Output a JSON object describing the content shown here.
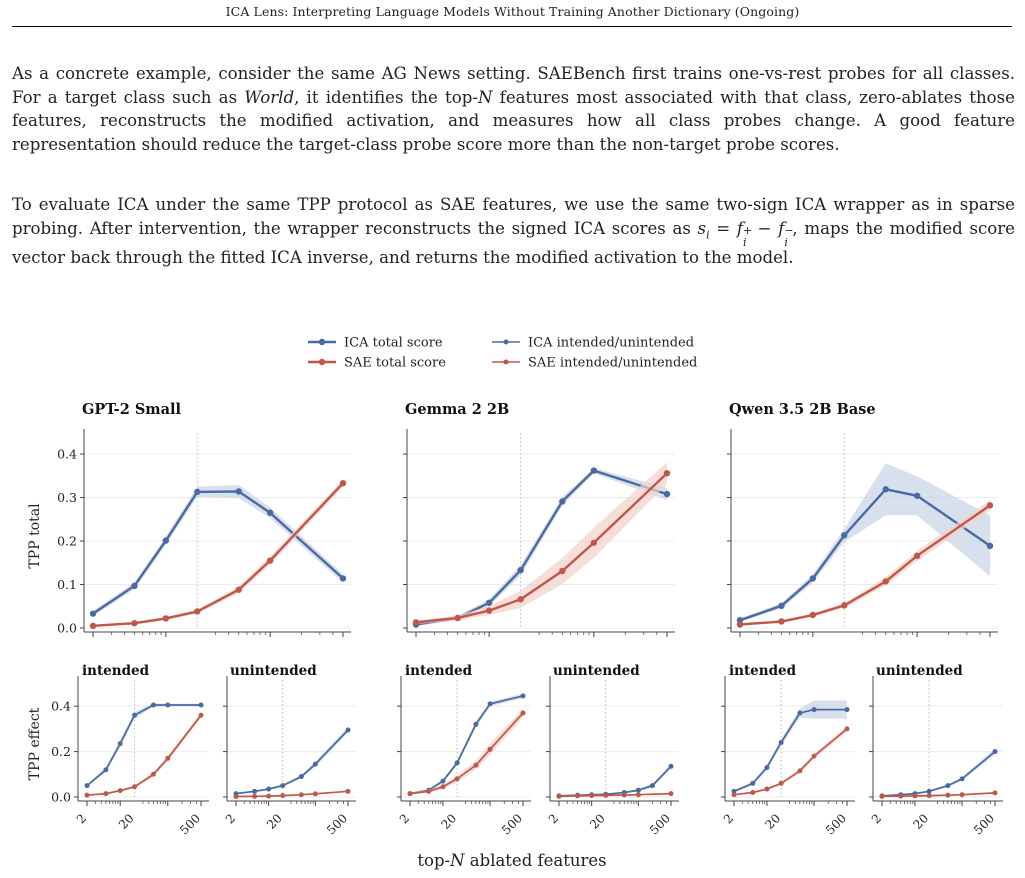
{
  "header": {
    "running_title": "ICA Lens: Interpreting Language Models Without Training Another Dictionary (Ongoing)"
  },
  "paragraphs": {
    "p1": {
      "a": "As a concrete example, consider the same AG News setting. SAEBench first trains one-vs-rest probes for all classes. For a target class such as ",
      "b": "World",
      "c": ", it identifies the top-",
      "d": "N",
      "e": " features most associated with that class, zero-ablates those features, reconstructs the modified activation, and measures how all class probes change. A good feature representation should reduce the target-class probe score more than the non-target probe scores."
    },
    "p2": {
      "a": "To evaluate ICA under the same TPP protocol as SAE features, we use the same two-sign ICA wrapper as in sparse probing. After intervention, the wrapper reconstructs the signed ICA scores as ",
      "math": "s",
      "math_sub": "i",
      "math_eq": " = ",
      "math_f1": "f",
      "math_f1_sup": "+",
      "math_f1_sub": "i",
      "math_minus": " − ",
      "math_f2": "f",
      "math_f2_sup": "−",
      "math_f2_sub": "i",
      "b": ", maps the modified score vector back through the fitted ICA inverse, and returns the modified activation to the model."
    }
  },
  "figure": {
    "legend": [
      {
        "label": "ICA total score",
        "color": "#4a6aa4",
        "style": "total"
      },
      {
        "label": "ICA intended/unintended",
        "color": "#4a6aa4",
        "style": "effect"
      },
      {
        "label": "SAE total score",
        "color": "#c0584a",
        "style": "total"
      },
      {
        "label": "SAE intended/unintended",
        "color": "#c0584a",
        "style": "effect"
      }
    ],
    "colors": {
      "ica": "#4a6aa4",
      "sae": "#c0584a",
      "ica_band": "#c9d3e6",
      "sae_band": "#f2d2cc"
    },
    "xlabel_prefix": "top-",
    "xlabel_var": "N",
    "xlabel_suffix": " ablated features",
    "top_ylabel": "TPP total",
    "bottom_ylabel": "TPP effect",
    "intended_label": "intended",
    "unintended_label": "unintended",
    "top_yticks": [
      "0.0",
      "0.1",
      "0.2",
      "0.3",
      "0.4"
    ],
    "bottom_yticks": [
      "0.0",
      "0.2",
      "0.4"
    ],
    "xtick_labels": [
      "2",
      "20",
      "500"
    ],
    "x_axis_scale": "log",
    "reference_line_x": 20
  },
  "chart_data": [
    {
      "type": "line",
      "title": "GPT-2 Small",
      "ylabel": "TPP total",
      "ylim": [
        0,
        0.43
      ],
      "x": [
        2,
        5,
        10,
        20,
        50,
        100,
        200,
        500
      ],
      "series": [
        {
          "name": "ICA total score",
          "values": [
            0.033,
            0.097,
            0.201,
            0.313,
            0.314,
            0.265,
            null,
            0.114
          ],
          "band": [
            0.006,
            0.008,
            0.01,
            0.012,
            0.015,
            0.012,
            null,
            0.01
          ]
        },
        {
          "name": "SAE total score",
          "values": [
            0.005,
            0.011,
            0.022,
            0.038,
            0.088,
            0.155,
            null,
            0.333
          ],
          "band": [
            0.002,
            0.003,
            0.004,
            0.005,
            0.008,
            0.01,
            null,
            0.008
          ]
        }
      ]
    },
    {
      "type": "line",
      "title": "Gemma 2 2B",
      "ylabel": "TPP total",
      "ylim": [
        0,
        0.43
      ],
      "x": [
        2,
        5,
        10,
        20,
        50,
        100,
        200,
        500
      ],
      "series": [
        {
          "name": "ICA total score",
          "values": [
            0.008,
            0.023,
            0.058,
            0.133,
            0.291,
            0.362,
            null,
            0.308
          ],
          "band": [
            0.004,
            0.005,
            0.008,
            0.012,
            0.01,
            0.006,
            null,
            0.014
          ]
        },
        {
          "name": "SAE total score",
          "values": [
            0.013,
            0.023,
            0.04,
            0.066,
            0.131,
            0.196,
            null,
            0.356
          ],
          "band": [
            0.004,
            0.006,
            0.01,
            0.02,
            0.03,
            0.035,
            null,
            0.025
          ]
        }
      ]
    },
    {
      "type": "line",
      "title": "Qwen 3.5 2B Base",
      "ylabel": "TPP total",
      "ylim": [
        0,
        0.43
      ],
      "x": [
        2,
        5,
        10,
        20,
        50,
        100,
        200,
        500
      ],
      "series": [
        {
          "name": "ICA total score",
          "values": [
            0.018,
            0.051,
            0.114,
            0.213,
            0.319,
            0.304,
            null,
            0.189
          ],
          "band": [
            0.004,
            0.006,
            0.01,
            0.015,
            0.06,
            0.045,
            null,
            0.07
          ]
        },
        {
          "name": "SAE total score",
          "values": [
            0.008,
            0.015,
            0.03,
            0.052,
            0.107,
            0.166,
            null,
            0.282
          ],
          "band": [
            0.002,
            0.003,
            0.004,
            0.006,
            0.01,
            0.012,
            null,
            0.012
          ]
        }
      ]
    },
    {
      "type": "line",
      "title": "intended",
      "ylabel": "TPP effect",
      "ylim": [
        0,
        0.48
      ],
      "x": [
        2,
        5,
        10,
        20,
        50,
        100,
        200,
        500
      ],
      "series": [
        {
          "name": "ICA intended/unintended",
          "values": [
            0.05,
            0.12,
            0.235,
            0.36,
            0.405,
            0.405,
            null,
            0.405
          ],
          "band": [
            0.006,
            0.01,
            0.015,
            0.015,
            0.008,
            0.006,
            null,
            0.006
          ]
        },
        {
          "name": "SAE intended/unintended",
          "values": [
            0.008,
            0.015,
            0.028,
            0.045,
            0.1,
            0.17,
            null,
            0.36
          ],
          "band": [
            0.003,
            0.004,
            0.005,
            0.007,
            0.01,
            0.012,
            null,
            0.012
          ]
        }
      ]
    },
    {
      "type": "line",
      "title": "unintended",
      "ylabel": "TPP effect",
      "ylim": [
        0,
        0.48
      ],
      "x": [
        2,
        5,
        10,
        20,
        50,
        100,
        200,
        500
      ],
      "series": [
        {
          "name": "ICA intended/unintended",
          "values": [
            0.015,
            0.025,
            0.035,
            0.05,
            0.09,
            0.145,
            null,
            0.295
          ],
          "band": [
            0.003,
            0.004,
            0.005,
            0.006,
            0.008,
            0.012,
            null,
            0.012
          ]
        },
        {
          "name": "SAE intended/unintended",
          "values": [
            0.002,
            0.003,
            0.004,
            0.006,
            0.01,
            0.014,
            null,
            0.025
          ],
          "band": [
            0.001,
            0.001,
            0.002,
            0.002,
            0.003,
            0.003,
            null,
            0.004
          ]
        }
      ]
    },
    {
      "type": "line",
      "title": "intended",
      "ylabel": "TPP effect",
      "ylim": [
        0,
        0.48
      ],
      "x": [
        2,
        5,
        10,
        20,
        50,
        100,
        200,
        500
      ],
      "series": [
        {
          "name": "ICA intended/unintended",
          "values": [
            0.015,
            0.03,
            0.07,
            0.15,
            0.32,
            0.41,
            null,
            0.445
          ],
          "band": [
            0.004,
            0.006,
            0.008,
            0.012,
            0.015,
            0.01,
            null,
            0.01
          ]
        },
        {
          "name": "SAE intended/unintended",
          "values": [
            0.015,
            0.025,
            0.045,
            0.08,
            0.14,
            0.21,
            null,
            0.37
          ],
          "band": [
            0.004,
            0.006,
            0.01,
            0.015,
            0.02,
            0.025,
            null,
            0.02
          ]
        }
      ]
    },
    {
      "type": "line",
      "title": "unintended",
      "ylabel": "TPP effect",
      "ylim": [
        0,
        0.48
      ],
      "x": [
        2,
        5,
        10,
        20,
        50,
        100,
        200,
        500
      ],
      "series": [
        {
          "name": "ICA intended/unintended",
          "values": [
            0.005,
            0.008,
            0.01,
            0.012,
            0.02,
            0.03,
            0.05,
            0.135
          ],
          "band": [
            0.002,
            0.002,
            0.003,
            0.003,
            0.004,
            0.006,
            0.008,
            0.01
          ]
        },
        {
          "name": "SAE intended/unintended",
          "values": [
            0.003,
            0.005,
            0.006,
            0.007,
            0.009,
            0.01,
            null,
            0.015
          ],
          "band": [
            0.001,
            0.001,
            0.002,
            0.002,
            0.002,
            0.002,
            null,
            0.003
          ]
        }
      ]
    },
    {
      "type": "line",
      "title": "intended",
      "ylabel": "TPP effect",
      "ylim": [
        0,
        0.48
      ],
      "x": [
        2,
        5,
        10,
        20,
        50,
        100,
        200,
        500
      ],
      "series": [
        {
          "name": "ICA intended/unintended",
          "values": [
            0.025,
            0.06,
            0.13,
            0.24,
            0.37,
            0.385,
            null,
            0.385
          ],
          "band": [
            0.005,
            0.008,
            0.012,
            0.015,
            0.02,
            0.04,
            null,
            0.04
          ]
        },
        {
          "name": "SAE intended/unintended",
          "values": [
            0.01,
            0.02,
            0.035,
            0.06,
            0.115,
            0.18,
            null,
            0.3
          ],
          "band": [
            0.003,
            0.004,
            0.005,
            0.007,
            0.01,
            0.012,
            null,
            0.012
          ]
        }
      ]
    },
    {
      "type": "line",
      "title": "unintended",
      "ylabel": "TPP effect",
      "ylim": [
        0,
        0.48
      ],
      "x": [
        2,
        5,
        10,
        20,
        50,
        100,
        200,
        500
      ],
      "series": [
        {
          "name": "ICA intended/unintended",
          "values": [
            0.005,
            0.01,
            0.015,
            0.025,
            0.05,
            0.08,
            null,
            0.2
          ],
          "band": [
            0.002,
            0.002,
            0.003,
            0.004,
            0.006,
            0.008,
            null,
            0.015
          ]
        },
        {
          "name": "SAE intended/unintended",
          "values": [
            0.003,
            0.004,
            0.005,
            0.006,
            0.008,
            0.01,
            null,
            0.018
          ],
          "band": [
            0.001,
            0.001,
            0.001,
            0.002,
            0.002,
            0.002,
            null,
            0.003
          ]
        }
      ]
    }
  ]
}
